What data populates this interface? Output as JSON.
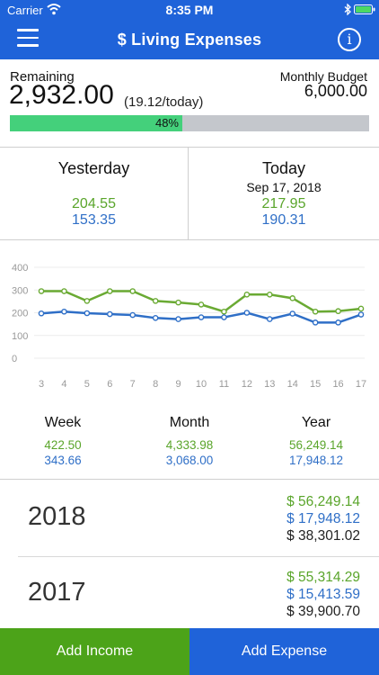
{
  "status_bar": {
    "carrier": "Carrier",
    "time": "8:35 PM"
  },
  "header": {
    "title": "$ Living Expenses",
    "menu_icon": "hamburger-menu-icon",
    "info_icon": "info-icon",
    "info_glyph": "i",
    "background": "#1f63d9"
  },
  "summary": {
    "remaining_label": "Remaining",
    "remaining_value": "2,932.00",
    "per_day": "(19.12/today)",
    "budget_label": "Monthly Budget",
    "budget_value": "6,000.00",
    "progress_percent": 48,
    "progress_label": "48%",
    "progress_color": "#44d07b"
  },
  "days": {
    "yesterday": {
      "title": "Yesterday",
      "income": "204.55",
      "expense": "153.35"
    },
    "today": {
      "title": "Today",
      "date": "Sep 17, 2018",
      "income": "217.95",
      "expense": "190.31"
    }
  },
  "chart_data": {
    "type": "line",
    "x": [
      3,
      4,
      5,
      6,
      7,
      8,
      9,
      10,
      11,
      12,
      13,
      14,
      15,
      16,
      17
    ],
    "y_ticks": [
      0,
      100,
      200,
      300,
      400
    ],
    "ylim": [
      0,
      400
    ],
    "series": [
      {
        "color": "#6aaa33",
        "values": [
          295,
          295,
          252,
          295,
          295,
          252,
          245,
          236,
          205,
          280,
          280,
          264,
          205,
          207,
          218
        ]
      },
      {
        "color": "#2f6fc7",
        "values": [
          197,
          205,
          198,
          194,
          190,
          177,
          172,
          180,
          180,
          200,
          172,
          196,
          157,
          157,
          192
        ]
      }
    ],
    "grid": true
  },
  "periods": [
    {
      "title": "Week",
      "income": "422.50",
      "expense": "343.66"
    },
    {
      "title": "Month",
      "income": "4,333.98",
      "expense": "3,068.00"
    },
    {
      "title": "Year",
      "income": "56,249.14",
      "expense": "17,948.12"
    }
  ],
  "years": [
    {
      "year": "2018",
      "income": "$ 56,249.14",
      "expense": "$ 17,948.12",
      "net": "$ 38,301.02"
    },
    {
      "year": "2017",
      "income": "$ 55,314.29",
      "expense": "$ 15,413.59",
      "net": "$ 39,900.70"
    }
  ],
  "actions": {
    "add_income": "Add Income",
    "add_expense": "Add Expense",
    "income_color": "#4ca319",
    "expense_color": "#1f63d9"
  }
}
